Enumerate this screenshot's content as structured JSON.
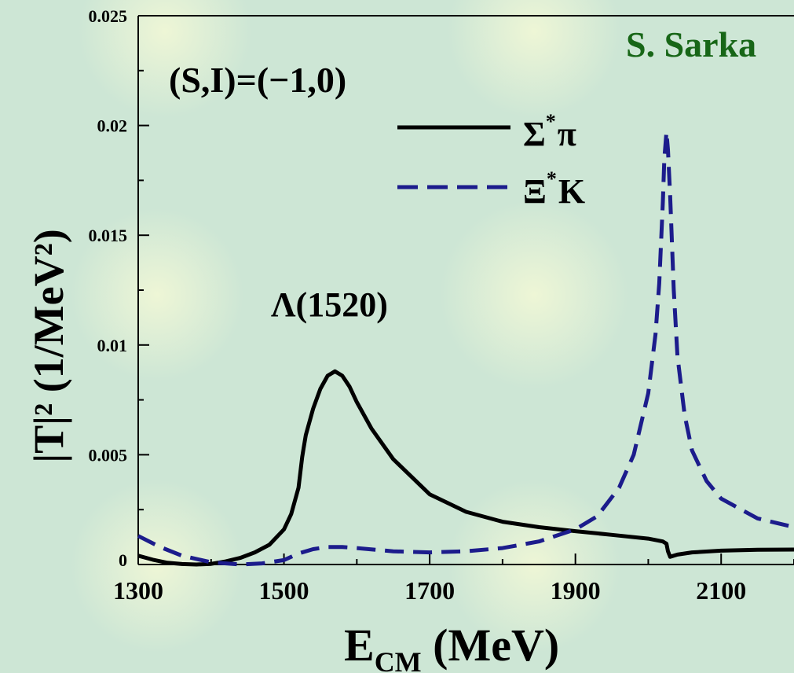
{
  "chart_data": {
    "type": "line",
    "author": "S. Sarka",
    "annotation": "(S,I)=(−1,0)",
    "peak_label": "Λ(1520)",
    "xlabel": "E",
    "xlabel_sub": "CM",
    "xlabel_unit": " (MeV)",
    "ylabel": "|T|² (1/MeV²)",
    "xlim": [
      1300,
      2200
    ],
    "ylim": [
      0,
      0.025
    ],
    "x_ticks": [
      "1300",
      "1500",
      "1700",
      "1900",
      "2100"
    ],
    "x_tick_values": [
      1300,
      1500,
      1700,
      1900,
      2100
    ],
    "y_ticks": [
      "0",
      "0.005",
      "0.01",
      "0.015",
      "0.02",
      "0.025"
    ],
    "y_tick_values": [
      0,
      0.005,
      0.01,
      0.015,
      0.02,
      0.025
    ],
    "legend_position": "top-right",
    "series": [
      {
        "name": "Σ*π",
        "legend_main": "Σ",
        "legend_sup": "*",
        "legend_after": "π",
        "color": "#000000",
        "dash": "solid",
        "x": [
          1300,
          1320,
          1340,
          1360,
          1380,
          1400,
          1420,
          1440,
          1460,
          1480,
          1500,
          1510,
          1520,
          1525,
          1527,
          1530,
          1540,
          1550,
          1560,
          1570,
          1580,
          1590,
          1600,
          1620,
          1650,
          1700,
          1750,
          1800,
          1850,
          1900,
          1950,
          2000,
          2020,
          2025,
          2027,
          2030,
          2040,
          2060,
          2100,
          2150,
          2200
        ],
        "y": [
          0.0004,
          0.00022,
          8e-05,
          2e-05,
          0.0,
          3e-05,
          0.00014,
          0.0003,
          0.00055,
          0.0009,
          0.0016,
          0.0023,
          0.0035,
          0.0049,
          0.0053,
          0.0059,
          0.0071,
          0.008,
          0.0086,
          0.0088,
          0.0086,
          0.0081,
          0.0074,
          0.0062,
          0.0048,
          0.0032,
          0.0024,
          0.00195,
          0.0017,
          0.00152,
          0.00135,
          0.00118,
          0.00105,
          0.00095,
          0.0006,
          0.00035,
          0.00045,
          0.00055,
          0.00063,
          0.00067,
          0.00068
        ]
      },
      {
        "name": "Ξ*K",
        "legend_main": "Ξ",
        "legend_sup": "*",
        "legend_after": "K",
        "color": "#1c1c8c",
        "dash": "dashed",
        "x": [
          1300,
          1330,
          1360,
          1400,
          1440,
          1470,
          1500,
          1520,
          1540,
          1560,
          1580,
          1600,
          1650,
          1700,
          1750,
          1800,
          1850,
          1900,
          1930,
          1960,
          1980,
          2000,
          2010,
          2015,
          2020,
          2022,
          2025,
          2027,
          2030,
          2035,
          2040,
          2050,
          2060,
          2080,
          2100,
          2150,
          2200
        ],
        "y": [
          0.0013,
          0.0008,
          0.0004,
          0.0001,
          0.0,
          5e-05,
          0.0002,
          0.0005,
          0.0007,
          0.0008,
          0.0008,
          0.00075,
          0.0006,
          0.00055,
          0.0006,
          0.00075,
          0.00105,
          0.0016,
          0.0022,
          0.0035,
          0.005,
          0.0078,
          0.0105,
          0.0128,
          0.0165,
          0.0185,
          0.0197,
          0.0189,
          0.0168,
          0.0125,
          0.0095,
          0.0068,
          0.0052,
          0.0038,
          0.003,
          0.0021,
          0.0017
        ]
      }
    ]
  }
}
